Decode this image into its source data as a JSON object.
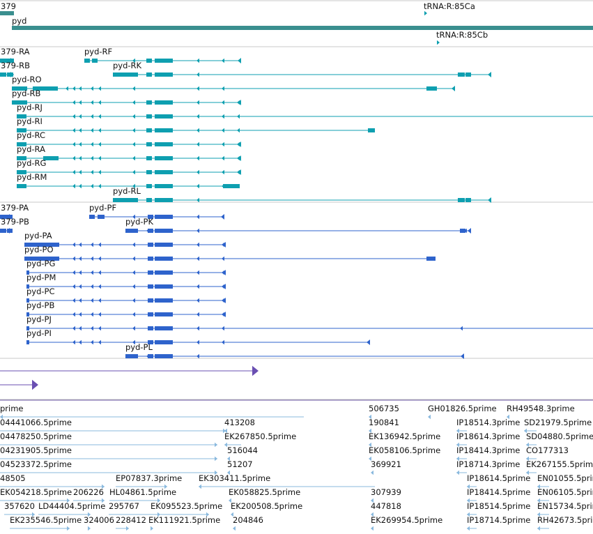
{
  "palette": {
    "gene": "#3a8f8f",
    "transcript": "#0e9fb0",
    "protein": "#2e63cc",
    "domain": "#6a4fb2",
    "est": "#8ab9de",
    "divider": "#c9c9c9"
  },
  "gene_track": {
    "labels": [
      "379",
      "pyd",
      "tRNA:R:85Ca",
      "tRNA:R:85Cb"
    ]
  },
  "transcripts": [
    {
      "label": "379-RA"
    },
    {
      "label": "379-RB"
    },
    {
      "label": "pyd-RF"
    },
    {
      "label": "pyd-RK"
    },
    {
      "label": "pyd-RO"
    },
    {
      "label": "pyd-RB"
    },
    {
      "label": "pyd-RJ"
    },
    {
      "label": "pyd-RI"
    },
    {
      "label": "pyd-RC"
    },
    {
      "label": "pyd-RA"
    },
    {
      "label": "pyd-RG"
    },
    {
      "label": "pyd-RM"
    },
    {
      "label": "pyd-RL"
    }
  ],
  "proteins": [
    {
      "label": "379-PA"
    },
    {
      "label": "379-PB"
    },
    {
      "label": "pyd-PF"
    },
    {
      "label": "pyd-PK"
    },
    {
      "label": "pyd-PA"
    },
    {
      "label": "pyd-PO"
    },
    {
      "label": "pyd-PG"
    },
    {
      "label": "pyd-PM"
    },
    {
      "label": "pyd-PC"
    },
    {
      "label": "pyd-PB"
    },
    {
      "label": "pyd-PJ"
    },
    {
      "label": "pyd-PI"
    },
    {
      "label": "pyd-PL"
    }
  ],
  "ests": [
    "prime",
    "506735",
    "GH01826.5prime",
    "RH49548.3prime",
    "04441066.5prime",
    "413208",
    "190841",
    "IP18514.3prime",
    "SD21979.5prime",
    "04478250.5prime",
    "EK267850.5prime",
    "EK136942.5prime",
    "IP18614.3prime",
    "SD04880.5prime",
    "04231905.5prime",
    "516044",
    "EK058106.5prime",
    "IP18414.3prime",
    "CO177313",
    "04523372.5prime",
    "51207",
    "369921",
    "IP18714.3prime",
    "EK267155.5prime",
    "48505",
    "EP07837.3prime",
    "EK303411.5prime",
    "IP18614.5prime",
    "EN01055.5prime",
    "EK054218.5prime",
    "206226",
    "HL04861.5prime",
    "EK058825.5prime",
    "307939",
    "IP18414.5prime",
    "EN06105.5prime",
    "357620",
    "LD44404.5prime",
    "295767",
    "EK095523.5prime",
    "EK200508.5prime",
    "447818",
    "IP18514.5prime",
    "EN15734.5prime",
    "EK235546.5prime",
    "324006",
    "228412",
    "EK111921.5prime",
    "204846",
    "EK269954.5prime",
    "IP18714.5prime",
    "RH42673.5prime"
  ]
}
